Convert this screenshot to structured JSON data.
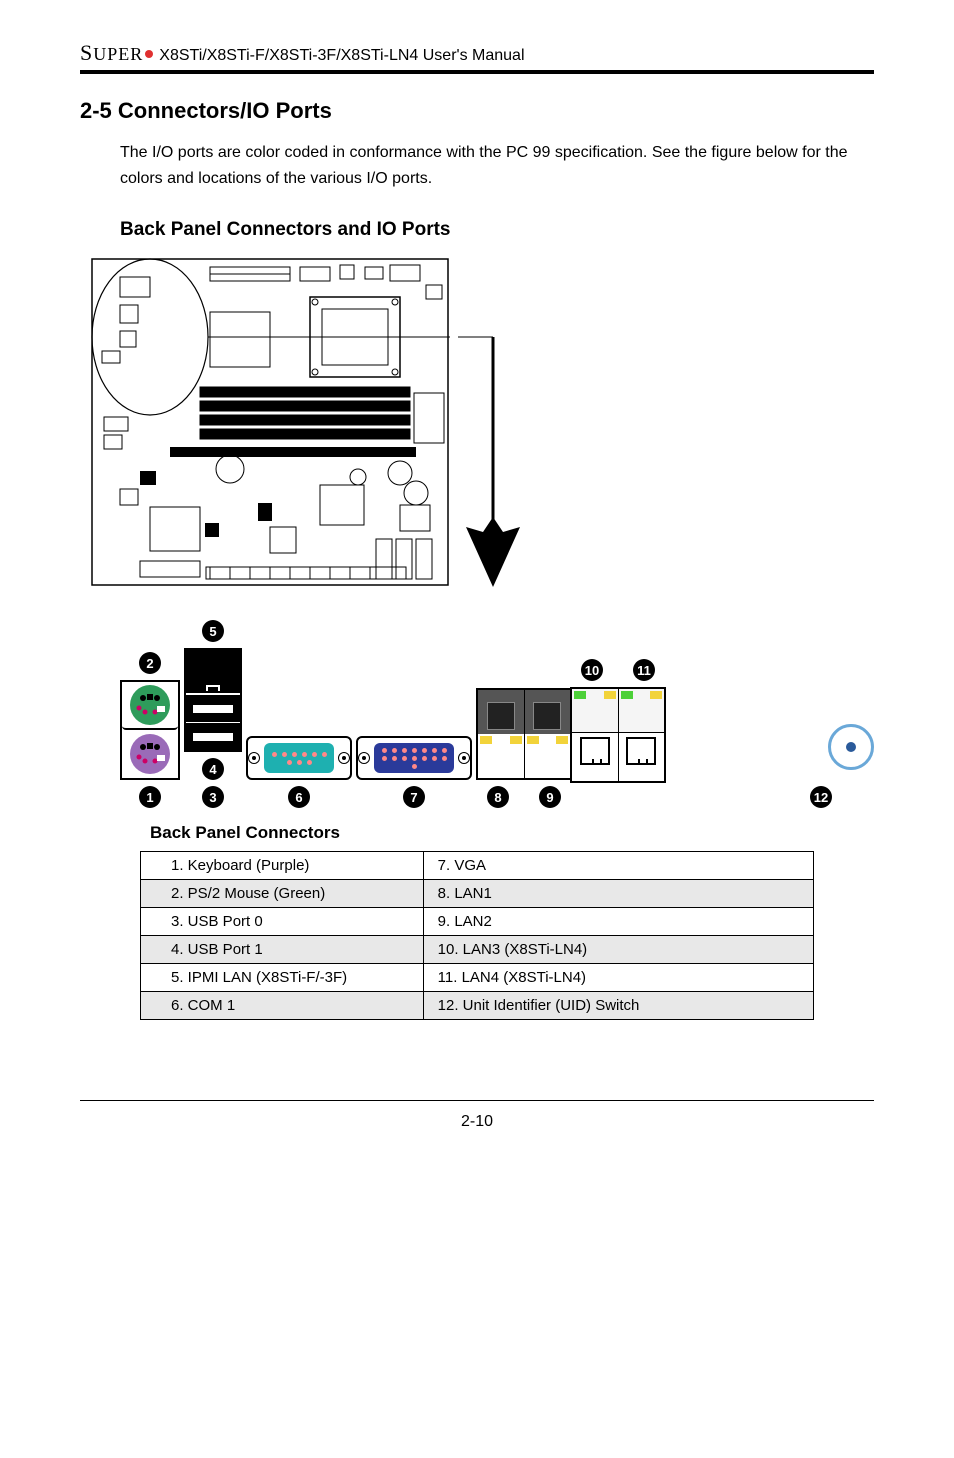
{
  "header": {
    "brand_prefix": "S",
    "brand_rest": "UPER",
    "manual_title": "X8STi/X8STi-F/X8STi-3F/X8STi-LN4 User's Manual"
  },
  "section": {
    "number_title": "2-5   Connectors/IO Ports",
    "intro": "The I/O ports are color coded in conformance with the PC 99 specification. See the figure below for the colors and locations of the various I/O ports."
  },
  "subheading_panel": "Back Panel Connectors and IO Ports",
  "subheading_table": "Back Panel Connectors",
  "io_badge_labels": {
    "n1": "1",
    "n2": "2",
    "n3": "3",
    "n4": "4",
    "n5": "5",
    "n6": "6",
    "n7": "7",
    "n8": "8",
    "n9": "9",
    "n10": "10",
    "n11": "11",
    "n12": "12"
  },
  "colors": {
    "ps2_mouse": "#2e9c5b",
    "ps2_keyboard": "#9a6bb8",
    "com_port": "#1eb0b0",
    "vga_port": "#2a3a9a",
    "pin_light": "#ffffff",
    "led_yellow": "#f2d33a",
    "led_green": "#4cd038",
    "uid_ring": "#6aa8d8",
    "uid_dot": "#2a5a9a",
    "shade_row": "#e8e8e8"
  },
  "table": {
    "rows": [
      {
        "left": "1. Keyboard (Purple)",
        "right": "7. VGA",
        "shaded": false
      },
      {
        "left": "2. PS/2 Mouse (Green)",
        "right": "8. LAN1",
        "shaded": true
      },
      {
        "left": "3. USB Port 0",
        "right": "9. LAN2",
        "shaded": false
      },
      {
        "left": "4. USB Port 1",
        "right": "10. LAN3 (X8STi-LN4)",
        "shaded": true
      },
      {
        "left": "5. IPMI LAN (X8STi-F/-3F)",
        "right": "11. LAN4 (X8STi-LN4)",
        "shaded": false
      },
      {
        "left": "6. COM 1",
        "right": "12. Unit Identifier (UID) Switch",
        "shaded": true
      }
    ]
  },
  "page_number": "2-10"
}
